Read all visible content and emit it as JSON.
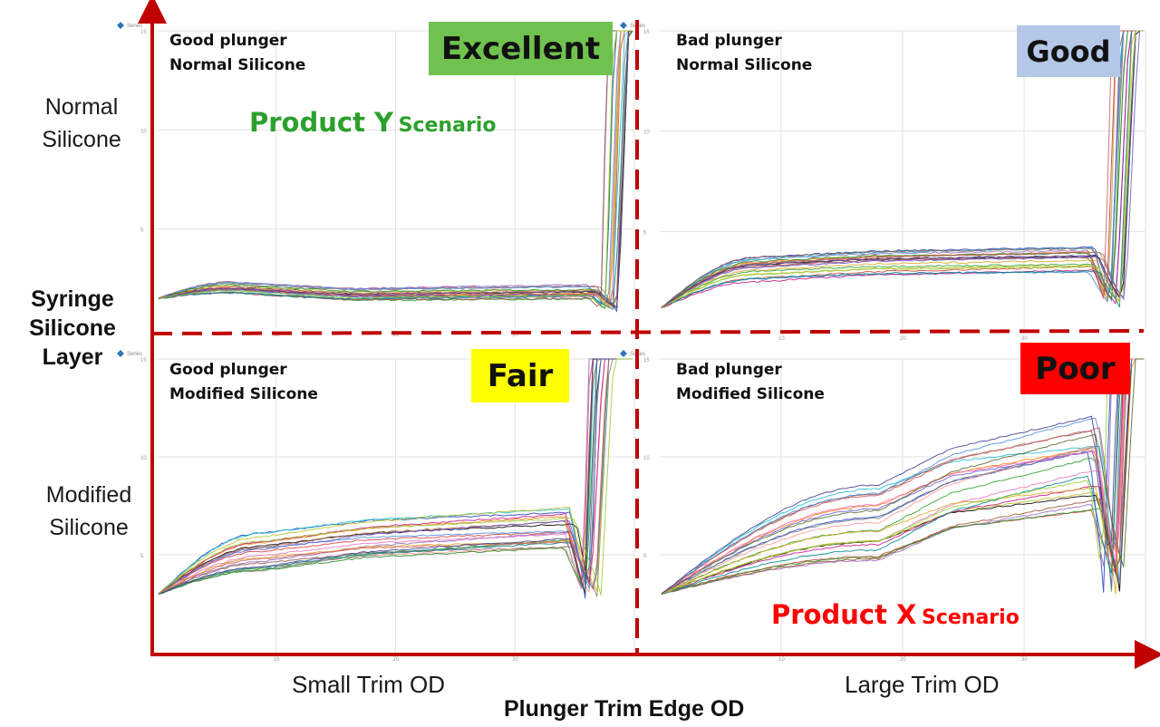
{
  "figure": {
    "y_axis_title": [
      "Syringe",
      "Silicone",
      "Layer"
    ],
    "x_axis_title": "Plunger Trim Edge OD",
    "row_labels": [
      [
        "Normal",
        "Silicone"
      ],
      [
        "Modified",
        "Silicone"
      ]
    ],
    "col_labels": [
      "Small Trim OD",
      "Large Trim OD"
    ],
    "colors": {
      "axis": "#c00000",
      "excellent": "#70c24e",
      "good": "#b4c7e7",
      "fair": "#ffff00",
      "poor": "#ff0000",
      "scenario_y": "#2ca02c",
      "scenario_x": "#ff0000"
    }
  },
  "chart_data": [
    {
      "type": "line",
      "id": "top-left",
      "lines": [
        "Good plunger",
        "Normal Silicone"
      ],
      "rating": "Excellent",
      "rating_color": "#70c24e",
      "scenario": {
        "big": "Product Y",
        "small": "Scenario",
        "color": "#2ca02c"
      },
      "ylim": [
        0,
        15
      ],
      "xlim": [
        0,
        40
      ],
      "x_ticks": [
        "10",
        "20",
        "30"
      ],
      "y_ticks": [
        "5",
        "10",
        "15"
      ],
      "legend": "Series",
      "profile": {
        "start": 1.5,
        "rise_end": 0.15,
        "peak": 2.0,
        "plateau": 1.6,
        "plateau_end": 1.75,
        "dip_at": 0.92,
        "dip": 0.8,
        "spread": 0.55,
        "n": 22
      }
    },
    {
      "type": "line",
      "id": "top-right",
      "lines": [
        "Bad plunger",
        "Normal Silicone"
      ],
      "rating": "Good",
      "rating_color": "#b4c7e7",
      "scenario": null,
      "ylim": [
        0,
        15
      ],
      "xlim": [
        0,
        40
      ],
      "x_ticks": [
        "10",
        "20",
        "30"
      ],
      "y_ticks": [
        "5",
        "10",
        "15"
      ],
      "legend": "Series",
      "profile": {
        "start": 1.2,
        "rise_end": 0.2,
        "peak": 3.0,
        "plateau": 3.2,
        "plateau_end": 3.4,
        "dip_at": 0.9,
        "dip": 1.0,
        "spread": 1.3,
        "n": 22
      }
    },
    {
      "type": "line",
      "id": "bottom-left",
      "lines": [
        "Good plunger",
        "Modified Silicone"
      ],
      "rating": "Fair",
      "rating_color": "#ffff00",
      "scenario": null,
      "ylim": [
        0,
        15
      ],
      "xlim": [
        0,
        40
      ],
      "x_ticks": [
        "10",
        "20",
        "30"
      ],
      "y_ticks": [
        "5",
        "10",
        "15"
      ],
      "legend": "Series",
      "profile": {
        "start": 3.0,
        "rise_end": 0.22,
        "peak": 5.0,
        "plateau": 5.4,
        "plateau_end": 6.0,
        "dip_at": 0.87,
        "dip": 2.5,
        "spread": 2.0,
        "n": 22
      }
    },
    {
      "type": "line",
      "id": "bottom-right",
      "lines": [
        "Bad plunger",
        "Modified Silicone"
      ],
      "rating": "Poor",
      "rating_color": "#ff0000",
      "scenario": {
        "big": "Product X",
        "small": "Scenario",
        "color": "#ff0000"
      },
      "ylim": [
        0,
        15
      ],
      "xlim": [
        0,
        40
      ],
      "x_ticks": [
        "10",
        "20",
        "30"
      ],
      "y_ticks": [
        "5",
        "10",
        "15"
      ],
      "legend": "Series",
      "profile": {
        "start": 3.0,
        "rise_end": 0.45,
        "peak": 6.5,
        "plateau": 7.5,
        "plateau_end": 9.0,
        "dip_at": 0.9,
        "dip": 3.0,
        "spread": 4.5,
        "n": 24
      }
    }
  ]
}
